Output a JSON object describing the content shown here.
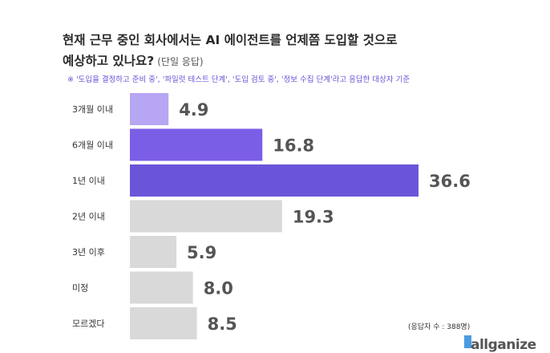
{
  "title_line1": "현재 근무 중인 회사에서는 AI 에이전트를 언제쯤 도입할 것으로",
  "title_line2": "예상하고 있나요?",
  "title_suffix": "(단일 응답)",
  "note": "※ '도입을 결정하고 준비 중', '파일럿 테스트 단계', '도입 검토 중', '정보 수집 단계'라고 응답한 대상자 기준",
  "respondents": "(응답자 수 : 388명)",
  "logo": "allganize",
  "colors": {
    "light_purple": "#b6a6f3",
    "mid_purple": "#7b5ee6",
    "dark_purple": "#6a55d8",
    "gray": "#d9d9d9",
    "value_text": "#555555",
    "label_text": "#333333",
    "logo_accent": "#4a9be0"
  },
  "chart_data": {
    "type": "bar",
    "orientation": "horizontal",
    "categories": [
      "3개월 이내",
      "6개월 이내",
      "1년 이내",
      "2년 이내",
      "3년 이후",
      "미정",
      "모르겠다"
    ],
    "values": [
      4.9,
      16.8,
      36.6,
      19.3,
      5.9,
      8.0,
      8.5
    ],
    "value_labels": [
      "4.9",
      "16.8",
      "36.6",
      "19.3",
      "5.9",
      "8.0",
      "8.5"
    ],
    "bar_colors": [
      "light_purple",
      "mid_purple",
      "dark_purple",
      "gray",
      "gray",
      "gray",
      "gray"
    ],
    "xlim": [
      0,
      40
    ],
    "grid": false,
    "legend": "none"
  }
}
